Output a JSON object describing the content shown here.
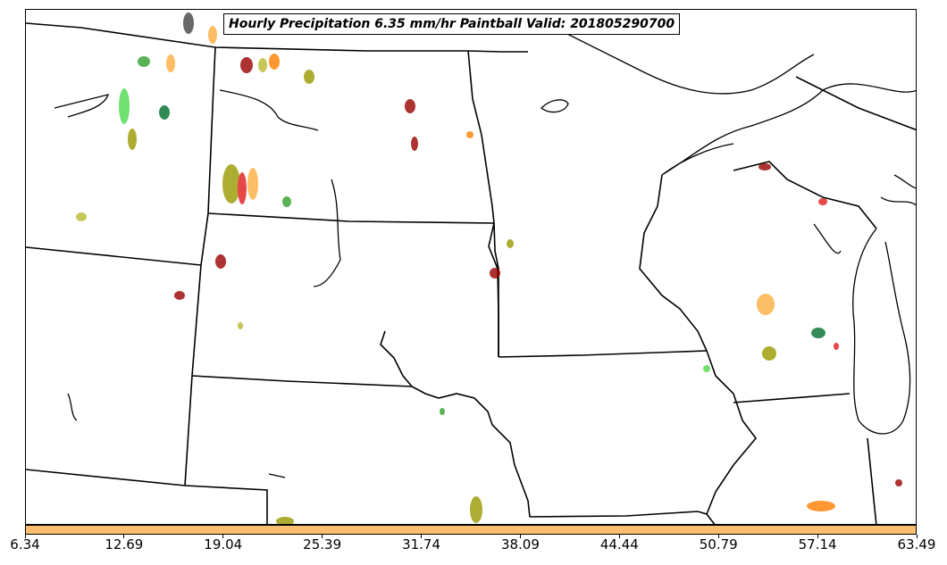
{
  "map": {
    "title": "Hourly Precipitation 6.35 mm/hr Paintball Valid: 201805290700"
  },
  "colorbar": {
    "color": "#fdbf6f",
    "ticks": [
      "6.34",
      "12.69",
      "19.04",
      "25.39",
      "31.74",
      "38.09",
      "44.44",
      "50.79",
      "57.14",
      "63.49"
    ]
  },
  "colors": {
    "red": "#e31a1c",
    "dark_red": "#990000",
    "orange": "#ff7f00",
    "light_orange": "#fdae40",
    "olive": "#999900",
    "yellow_olive": "#b8b830",
    "green": "#33a02c",
    "dark_green": "#006d2c",
    "bright_green": "#4dd94d",
    "gray": "#444444"
  }
}
